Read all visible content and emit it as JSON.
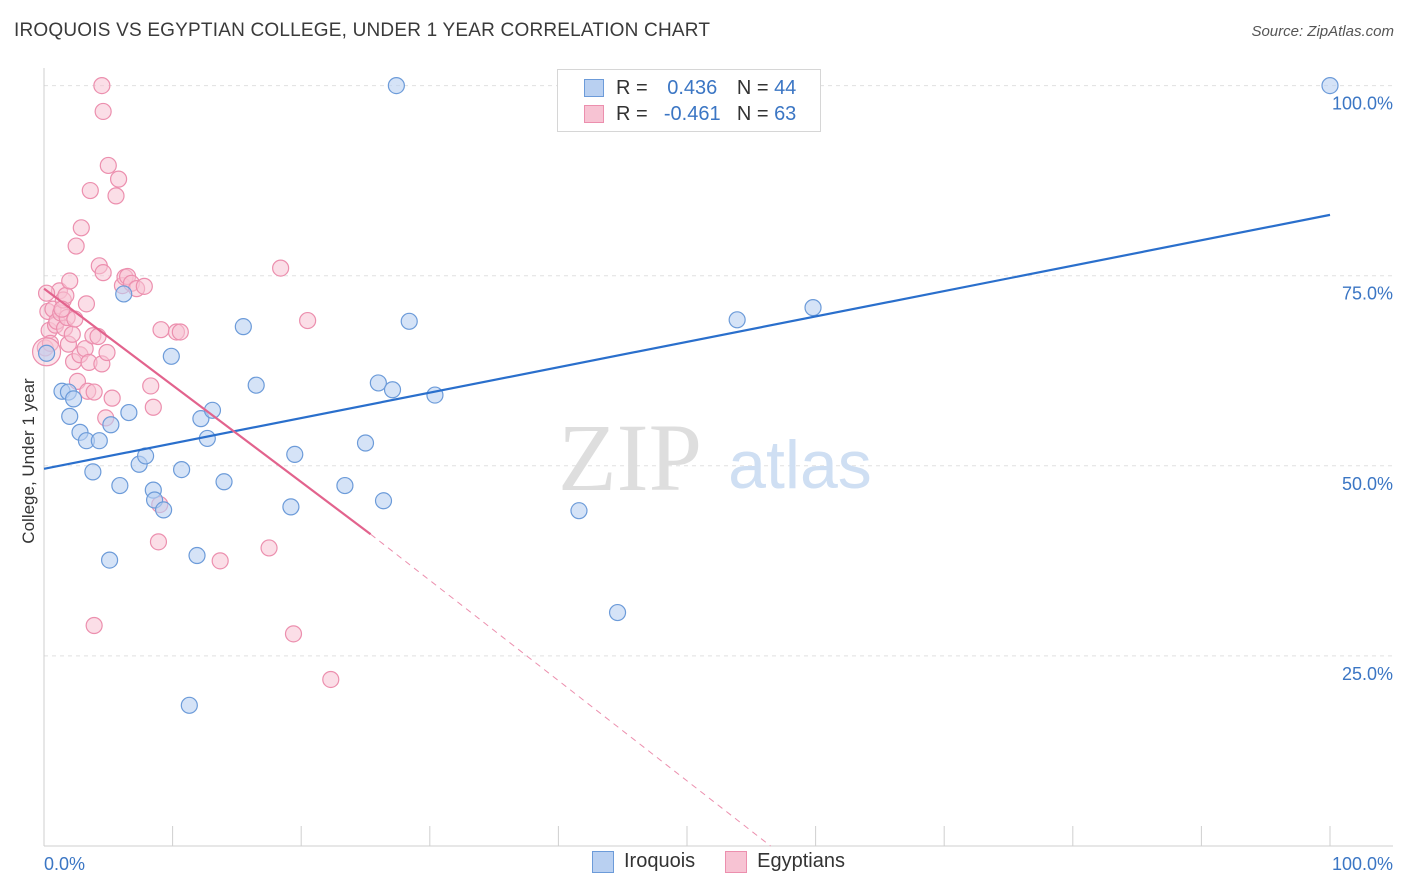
{
  "title": "IROQUOIS VS EGYPTIAN COLLEGE, UNDER 1 YEAR CORRELATION CHART",
  "source": "Source: ZipAtlas.com",
  "watermark": {
    "zip": "ZIP",
    "atlas": "atlas"
  },
  "legend": {
    "rows": [
      {
        "r_label": "R =",
        "r_value": "0.436",
        "n_label": "N =",
        "n_value": "44"
      },
      {
        "r_label": "R =",
        "r_value": "-0.461",
        "n_label": "N =",
        "n_value": "63"
      }
    ]
  },
  "colors": {
    "iroquois_fill": "#b9d0f1",
    "iroquois_stroke": "#6c9bd9",
    "iroquois_line": "#2a6fcc",
    "egyptians_fill": "#f7c3d3",
    "egyptians_stroke": "#ec8fae",
    "egyptians_line": "#e2638d",
    "axis_text": "#3b76c4",
    "grid": "#e0e0e0"
  },
  "chart_data": {
    "type": "scatter",
    "title": "IROQUOIS VS EGYPTIAN COLLEGE, UNDER 1 YEAR CORRELATION CHART",
    "xlabel": "",
    "ylabel": "College, Under 1 year",
    "xlim": [
      0,
      100
    ],
    "ylim": [
      0,
      101
    ],
    "x_tick_labels": [
      "0.0%",
      "100.0%"
    ],
    "y_ticks": [
      25,
      50,
      75,
      100
    ],
    "y_tick_labels": [
      "25.0%",
      "50.0%",
      "75.0%",
      "100.0%"
    ],
    "grid": true,
    "legend_position": "bottom-center",
    "series": [
      {
        "name": "Iroquois",
        "points": [
          [
            0.2,
            64.8
          ],
          [
            1.4,
            59.8
          ],
          [
            1.9,
            59.7
          ],
          [
            2.0,
            56.5
          ],
          [
            2.3,
            58.8
          ],
          [
            2.8,
            54.4
          ],
          [
            3.3,
            53.3
          ],
          [
            3.8,
            49.2
          ],
          [
            4.3,
            53.3
          ],
          [
            5.1,
            37.6
          ],
          [
            5.2,
            55.4
          ],
          [
            5.9,
            47.4
          ],
          [
            6.2,
            72.6
          ],
          [
            6.6,
            57.0
          ],
          [
            7.4,
            50.2
          ],
          [
            7.9,
            51.3
          ],
          [
            8.5,
            46.8
          ],
          [
            8.6,
            45.5
          ],
          [
            9.3,
            44.2
          ],
          [
            9.9,
            64.4
          ],
          [
            10.7,
            49.5
          ],
          [
            11.3,
            18.5
          ],
          [
            11.9,
            38.2
          ],
          [
            12.2,
            56.2
          ],
          [
            12.7,
            53.6
          ],
          [
            13.1,
            57.3
          ],
          [
            14.0,
            47.9
          ],
          [
            15.5,
            68.3
          ],
          [
            16.5,
            60.6
          ],
          [
            19.2,
            44.6
          ],
          [
            19.5,
            51.5
          ],
          [
            23.4,
            47.4
          ],
          [
            25.0,
            53.0
          ],
          [
            26.0,
            60.9
          ],
          [
            26.4,
            45.4
          ],
          [
            27.1,
            60.0
          ],
          [
            27.4,
            100
          ],
          [
            28.4,
            69.0
          ],
          [
            30.4,
            59.3
          ],
          [
            41.6,
            44.1
          ],
          [
            44.6,
            30.7
          ],
          [
            53.9,
            69.2
          ],
          [
            59.8,
            70.8
          ],
          [
            100,
            100
          ]
        ],
        "trend": [
          [
            0,
            49.6
          ],
          [
            100,
            83.0
          ]
        ]
      },
      {
        "name": "Egyptians",
        "points": [
          [
            0.1,
            65.5
          ],
          [
            0.3,
            70.3
          ],
          [
            0.4,
            67.8
          ],
          [
            0.5,
            66.1
          ],
          [
            0.7,
            70.6
          ],
          [
            0.9,
            68.5
          ],
          [
            1.0,
            69.0
          ],
          [
            1.2,
            73.0
          ],
          [
            1.3,
            70.1
          ],
          [
            1.5,
            71.8
          ],
          [
            1.6,
            68.1
          ],
          [
            1.7,
            72.4
          ],
          [
            1.8,
            69.5
          ],
          [
            1.9,
            66.0
          ],
          [
            2.0,
            74.3
          ],
          [
            2.2,
            67.3
          ],
          [
            2.3,
            63.7
          ],
          [
            2.4,
            69.3
          ],
          [
            2.5,
            78.9
          ],
          [
            2.6,
            61.1
          ],
          [
            2.8,
            64.6
          ],
          [
            2.9,
            81.3
          ],
          [
            3.2,
            65.4
          ],
          [
            3.3,
            71.3
          ],
          [
            3.4,
            59.8
          ],
          [
            3.5,
            63.6
          ],
          [
            3.6,
            86.2
          ],
          [
            3.8,
            67.1
          ],
          [
            3.9,
            59.7
          ],
          [
            3.9,
            29.0
          ],
          [
            4.2,
            67.0
          ],
          [
            4.3,
            76.3
          ],
          [
            4.5,
            63.4
          ],
          [
            4.6,
            75.4
          ],
          [
            4.8,
            56.3
          ],
          [
            4.9,
            64.9
          ],
          [
            4.5,
            100
          ],
          [
            4.6,
            96.6
          ],
          [
            5.0,
            89.5
          ],
          [
            5.3,
            58.9
          ],
          [
            5.6,
            85.5
          ],
          [
            5.8,
            87.7
          ],
          [
            6.1,
            73.7
          ],
          [
            6.3,
            74.8
          ],
          [
            6.5,
            74.9
          ],
          [
            6.8,
            74.0
          ],
          [
            7.2,
            73.3
          ],
          [
            7.8,
            73.6
          ],
          [
            8.3,
            60.5
          ],
          [
            8.5,
            57.7
          ],
          [
            8.9,
            40.0
          ],
          [
            9.0,
            44.9
          ],
          [
            9.1,
            67.9
          ],
          [
            10.3,
            67.6
          ],
          [
            10.6,
            67.6
          ],
          [
            13.7,
            37.5
          ],
          [
            17.5,
            39.2
          ],
          [
            18.4,
            76.0
          ],
          [
            19.4,
            27.9
          ],
          [
            20.5,
            69.1
          ],
          [
            22.3,
            21.9
          ],
          [
            1.4,
            70.6
          ],
          [
            0.2,
            72.7
          ]
        ],
        "trend": [
          [
            0,
            73.3
          ],
          [
            25.4,
            41.0
          ]
        ],
        "trend_extension": [
          [
            25.4,
            41.0
          ],
          [
            56.5,
            0.0
          ]
        ]
      }
    ]
  },
  "bottom_legend": [
    {
      "label": "Iroquois"
    },
    {
      "label": "Egyptians"
    }
  ]
}
